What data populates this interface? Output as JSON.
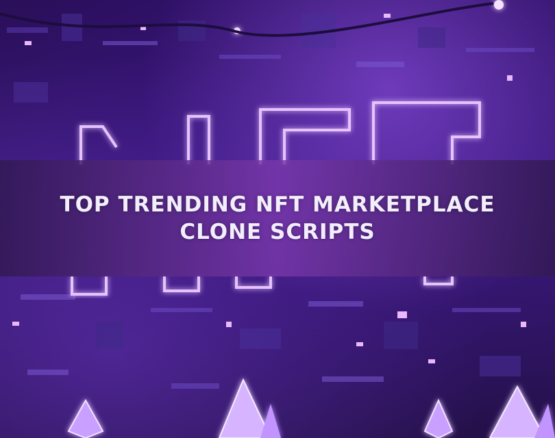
{
  "banner": {
    "line1": "TOP TRENDING NFT MARKETPLACE",
    "line2": "CLONE SCRIPTS"
  },
  "colors": {
    "neon": "#c68cff",
    "banner": "#6b3a9c",
    "text": "#f2eefc"
  }
}
